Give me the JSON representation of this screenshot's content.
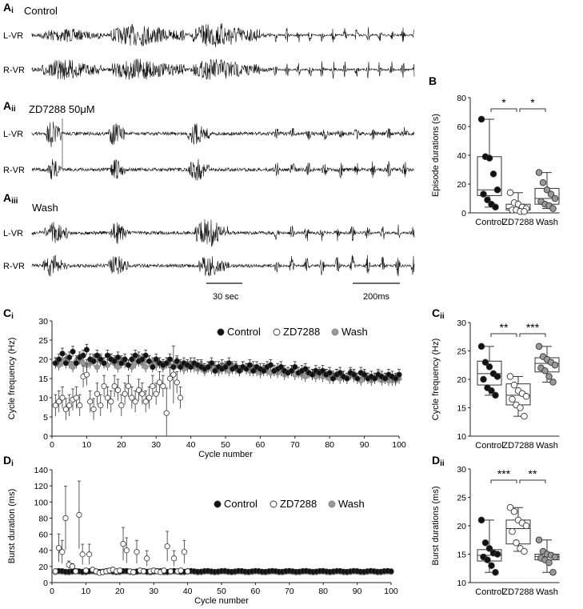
{
  "figure": {
    "panel_labels": {
      "Ai": "A",
      "Ai_sub": "i",
      "Aii": "A",
      "Aii_sub": "ii",
      "Aiii": "A",
      "Aiii_sub": "iii",
      "B": "B",
      "Ci": "C",
      "Ci_sub": "i",
      "Cii": "C",
      "Cii_sub": "ii",
      "Di": "D",
      "Di_sub": "i",
      "Dii": "D",
      "Dii_sub": "ii"
    },
    "traces": {
      "conditions": [
        "Control",
        "ZD7288 50μM",
        "Wash"
      ],
      "channels": [
        "L-VR",
        "R-VR"
      ],
      "scale_bars": {
        "slow": "30 sec",
        "fast": "200ms"
      }
    },
    "colors": {
      "control": "#111111",
      "zd": "#ffffff",
      "wash": "#999999",
      "axis": "#222222",
      "grid_text": "#111111"
    }
  },
  "chart_data": [
    {
      "id": "B",
      "type": "box-scatter",
      "title": "",
      "ylabel": "Episode durations (s)",
      "ylim": [
        0,
        80
      ],
      "yticks": [
        0,
        20,
        40,
        60,
        80
      ],
      "categories": [
        "Control",
        "ZD7288",
        "Wash"
      ],
      "series": [
        {
          "name": "Control",
          "values": [
            65,
            39,
            38,
            27,
            16,
            13,
            9,
            6,
            4
          ]
        },
        {
          "name": "ZD7288",
          "values": [
            14,
            7,
            6,
            4,
            3,
            2,
            2,
            1,
            1
          ]
        },
        {
          "name": "Wash",
          "values": [
            28,
            21,
            16,
            13,
            10,
            8,
            6,
            5,
            3
          ]
        }
      ],
      "boxes": [
        {
          "q1": 12,
          "median": 16,
          "q3": 39,
          "min": 4,
          "max": 65
        },
        {
          "q1": 2,
          "median": 3,
          "q3": 6,
          "min": 1,
          "max": 14
        },
        {
          "q1": 6,
          "median": 10,
          "q3": 17,
          "min": 3,
          "max": 28
        }
      ],
      "significance": [
        {
          "from": 0,
          "to": 1,
          "label": "*"
        },
        {
          "from": 1,
          "to": 2,
          "label": "*"
        }
      ]
    },
    {
      "id": "Cii",
      "type": "box-scatter",
      "ylabel": "Cycle frequency (Hz)",
      "ylim": [
        10,
        30
      ],
      "yticks": [
        10,
        15,
        20,
        25,
        30
      ],
      "categories": [
        "Control",
        "ZD7288",
        "Wash"
      ],
      "series": [
        {
          "name": "Control",
          "values": [
            25.8,
            23,
            22.2,
            21,
            20.5,
            20,
            18.5,
            18,
            17.2
          ]
        },
        {
          "name": "ZD7288",
          "values": [
            20.5,
            19,
            18,
            17.5,
            17,
            16.5,
            15.5,
            15,
            13.5
          ]
        },
        {
          "name": "Wash",
          "values": [
            25.8,
            24,
            23.5,
            23,
            22.5,
            22,
            21.5,
            20.5,
            19.5
          ]
        }
      ],
      "boxes": [
        {
          "q1": 19,
          "median": 21,
          "q3": 23.2,
          "min": 17.2,
          "max": 25.8
        },
        {
          "q1": 15.5,
          "median": 17.2,
          "q3": 19.2,
          "min": 13.5,
          "max": 20.5
        },
        {
          "q1": 21.3,
          "median": 22.8,
          "q3": 23.8,
          "min": 19.5,
          "max": 25.8
        }
      ],
      "significance": [
        {
          "from": 0,
          "to": 1,
          "label": "**"
        },
        {
          "from": 1,
          "to": 2,
          "label": "***"
        }
      ]
    },
    {
      "id": "Dii",
      "type": "box-scatter",
      "ylabel": "Burst durations (ms)",
      "ylim": [
        10,
        30
      ],
      "yticks": [
        10,
        15,
        20,
        25,
        30
      ],
      "categories": [
        "Control",
        "ZD7288",
        "Wash"
      ],
      "series": [
        {
          "name": "Control",
          "values": [
            21,
            17,
            16,
            15.2,
            15,
            14.5,
            14,
            13,
            11.8
          ]
        },
        {
          "name": "ZD7288",
          "values": [
            23.2,
            22.5,
            21,
            20.5,
            20,
            19,
            17,
            16,
            15.5
          ]
        },
        {
          "name": "Wash",
          "values": [
            17.5,
            15.5,
            15,
            14.8,
            14.5,
            14.3,
            14,
            13.5,
            11.8
          ]
        }
      ],
      "boxes": [
        {
          "q1": 13.8,
          "median": 14.8,
          "q3": 15.8,
          "min": 11.8,
          "max": 21
        },
        {
          "q1": 16.8,
          "median": 19.5,
          "q3": 21,
          "min": 15.5,
          "max": 23.2
        },
        {
          "q1": 14,
          "median": 14.6,
          "q3": 15,
          "min": 11.8,
          "max": 17.5
        }
      ],
      "significance": [
        {
          "from": 0,
          "to": 1,
          "label": "***"
        },
        {
          "from": 1,
          "to": 2,
          "label": "**"
        }
      ]
    },
    {
      "id": "Ci",
      "type": "scatter",
      "xlabel": "Cycle number",
      "ylabel": "Cycle frequency (Hz)",
      "xlim": [
        0,
        100
      ],
      "ylim": [
        0,
        30
      ],
      "xticks": [
        0,
        10,
        20,
        30,
        40,
        50,
        60,
        70,
        80,
        90,
        100
      ],
      "yticks": [
        0,
        5,
        10,
        15,
        20,
        25,
        30
      ],
      "legend": [
        "Control",
        "ZD7288",
        "Wash"
      ],
      "series": [
        {
          "name": "Control",
          "x_start": 1,
          "values": [
            19,
            20,
            21.5,
            19,
            20.5,
            22,
            19,
            20.5,
            21,
            22.5,
            20,
            19.5,
            21,
            20,
            19,
            21,
            20,
            19.5,
            20.5,
            19,
            20,
            18.5,
            20,
            21,
            19.5,
            20,
            21,
            19.5,
            18,
            20,
            19,
            18.5,
            19,
            20,
            18,
            19.5,
            18,
            19,
            18.5,
            18,
            19,
            18.5,
            18,
            17.5,
            18,
            19,
            17,
            18,
            17.5,
            18,
            19,
            17.5,
            18,
            17,
            18,
            17.5,
            18.5,
            17,
            18,
            17.5,
            17,
            18,
            18.5,
            17,
            17.5,
            18,
            17,
            16.5,
            17,
            18,
            16.5,
            17,
            17.5,
            16.5,
            16,
            17,
            16.5,
            17,
            16,
            16.5,
            15,
            16,
            16.5,
            15.5,
            15,
            16.5,
            16,
            15,
            16.5,
            16,
            15,
            15.5,
            15,
            16,
            15.5,
            15,
            16,
            15.5,
            15,
            16
          ]
        },
        {
          "name": "ZD7288",
          "x_start": 1,
          "values": [
            8,
            9,
            10,
            7,
            8,
            9.5,
            10,
            8,
            15.5,
            16,
            9,
            7,
            11,
            8,
            13,
            10,
            9,
            13,
            12,
            8,
            11,
            13,
            10,
            9,
            12,
            11,
            9,
            10,
            13,
            11,
            14,
            13,
            6,
            15,
            16,
            14,
            10
          ]
        },
        {
          "name": "Wash",
          "x_start": 1,
          "values": [
            19,
            18.5,
            19.5,
            20,
            19,
            18,
            19.5,
            20,
            19,
            18.5,
            19,
            20,
            18,
            19.5,
            19,
            18.5,
            20,
            19,
            18,
            19.5,
            19,
            18.5,
            18,
            19,
            20.5,
            19,
            18,
            19.5,
            19,
            18.5,
            19,
            18,
            19,
            18.5,
            18,
            19,
            18.5,
            17.5,
            18,
            19,
            18,
            17.5,
            18.5,
            17,
            18,
            17.5,
            18,
            17,
            18.5,
            17.5,
            17,
            18,
            17.5,
            17,
            18,
            17.5,
            17,
            18,
            17,
            16.5,
            17.5,
            17,
            16.5,
            17,
            16.5,
            17,
            16,
            16.5,
            17,
            16,
            16.5,
            16,
            15.5,
            16.5,
            16,
            15.5,
            16,
            15.5,
            16,
            15,
            15.5,
            16,
            15,
            15.5,
            15,
            16,
            15.5,
            15,
            14.5,
            15.5,
            15,
            14.5,
            15,
            15.5,
            14.5,
            15,
            14.5,
            14.5,
            14.5,
            15
          ]
        }
      ]
    },
    {
      "id": "Di",
      "type": "scatter",
      "xlabel": "Cycle number",
      "ylabel": "Burst duration (ms)",
      "xlim": [
        0,
        100
      ],
      "ylim": [
        0,
        140
      ],
      "xticks": [
        0,
        10,
        20,
        30,
        40,
        50,
        60,
        70,
        80,
        90,
        100
      ],
      "yticks": [
        0,
        20,
        40,
        60,
        80,
        100,
        120,
        140
      ],
      "legend": [
        "Control",
        "ZD7288",
        "Wash"
      ],
      "series": [
        {
          "name": "Control",
          "x_start": 1,
          "value": 14
        },
        {
          "name": "Wash",
          "x_start": 1,
          "value": 13
        },
        {
          "name": "ZD7288",
          "x_start": 1,
          "values": [
            14,
            43,
            38,
            80,
            22,
            20,
            14,
            84,
            35,
            15,
            35,
            16,
            14,
            12,
            13,
            14,
            15,
            16,
            14,
            15,
            48,
            40,
            14,
            13,
            38,
            15,
            14,
            30,
            14,
            15,
            14,
            13,
            15,
            45,
            14,
            30,
            14,
            15,
            38,
            14
          ]
        }
      ]
    }
  ]
}
